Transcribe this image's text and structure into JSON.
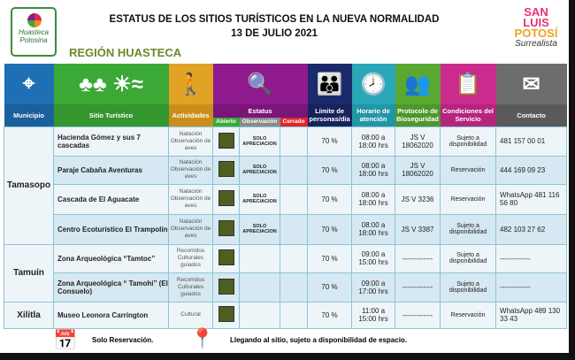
{
  "header": {
    "title": "ESTATUS DE LOS SITIOS TURÍSTICOS EN LA NUEVA NORMALIDAD",
    "date": "13 DE JULIO 2021",
    "region": "REGIÓN HUASTECA",
    "logo_left": "Huasteca Potosina",
    "logo_right": [
      "SAN LUIS",
      "POTOSÍ",
      "Surrealista"
    ]
  },
  "columns": {
    "municipio": "Municipio",
    "sitio": "Sitio Turístico",
    "actividades": "Actividades",
    "estatus": "Estatus",
    "abierto": "Abierto",
    "observacion": "Observación",
    "cerrado": "Cerrado",
    "limite": "Límite de personas/día",
    "horario": "Horario de atención",
    "protocolo": "Protocolo de Bioseguridad",
    "condiciones": "Condiciones del Servicio",
    "contacto": "Contacto"
  },
  "colors": {
    "municipio": "#1f6fb5",
    "sitio": "#3aa935",
    "actividades": "#e0a323",
    "estatus": "#8e1a8e",
    "limite": "#1b2a6b",
    "horario": "#2aa7b8",
    "protocolo": "#5aa832",
    "condiciones": "#cc2b8e",
    "contacto": "#6d6d6d",
    "abierto": "#3aa935",
    "observacion": "#8a8a8a",
    "cerrado": "#e3262b"
  },
  "municipios": [
    "Tamasopo",
    "Tamuín",
    "Xilitla"
  ],
  "rows": [
    {
      "sitio": "Hacienda Gómez y sus 7 cascadas",
      "actividades": "Natación Observación de aves",
      "observacion": "SOLO APRECIACION",
      "limite": "70 %",
      "horario": "08:00 a 18:00 hrs",
      "protocolo": "JS V 18062020",
      "condiciones": "Sujeto a disponibilidad",
      "contacto": "481 157 00 01"
    },
    {
      "sitio": "Paraje Cabaña Aventuras",
      "actividades": "Natación Observación de aves",
      "observacion": "SOLO APRECIACION",
      "limite": "70 %",
      "horario": "08:00 a 18:00 hrs",
      "protocolo": "JS V 18062020",
      "condiciones": "Reservación",
      "contacto": "444 169 09 23"
    },
    {
      "sitio": "Cascada de El Aguacate",
      "actividades": "Natación Observación de aves",
      "observacion": "SOLO APRECIACION",
      "limite": "70 %",
      "horario": "08:00 a 18:00 hrs",
      "protocolo": "JS V 3236",
      "condiciones": "Reservación",
      "contacto": "WhatsApp 481 116 56 80"
    },
    {
      "sitio": "Centro Ecoturístico El Trampolín",
      "actividades": "Natación Observación de aves",
      "observacion": "SOLO APRECIACION",
      "limite": "70 %",
      "horario": "08:00 a 18:00 hrs",
      "protocolo": "JS V 3387",
      "condiciones": "Sujeto a disponibilidad",
      "contacto": "482 103 27 62"
    },
    {
      "sitio": "Zona Arqueológica “Tamtoc”",
      "actividades": "Recorridos Culturales guiados",
      "observacion": "",
      "limite": "70 %",
      "horario": "09:00 a 15:00 hrs",
      "protocolo": "-------------",
      "condiciones": "Sujeto a disponibilidad",
      "contacto": "-------------"
    },
    {
      "sitio": "Zona Arqueológica “ Tamohi” (El Consuelo)",
      "actividades": "Recorridos Culturales guiados",
      "observacion": "",
      "limite": "70 %",
      "horario": "09:00 a 17:00 hrs",
      "protocolo": "-------------",
      "condiciones": "Sujeto a disponibilidad",
      "contacto": "-------------"
    },
    {
      "sitio": "Museo Leonora Carrington",
      "actividades": "Cultural",
      "observacion": "",
      "limite": "70 %",
      "horario": "11:00 a 15:00 hrs",
      "protocolo": "-------------",
      "condiciones": "Reservación",
      "contacto": "WhatsApp 489 130 33 43"
    }
  ],
  "legend": {
    "reservation": "Solo Reservación.",
    "arrival": "Llegando al sitio, sujeto a disponibilidad de espacio."
  }
}
